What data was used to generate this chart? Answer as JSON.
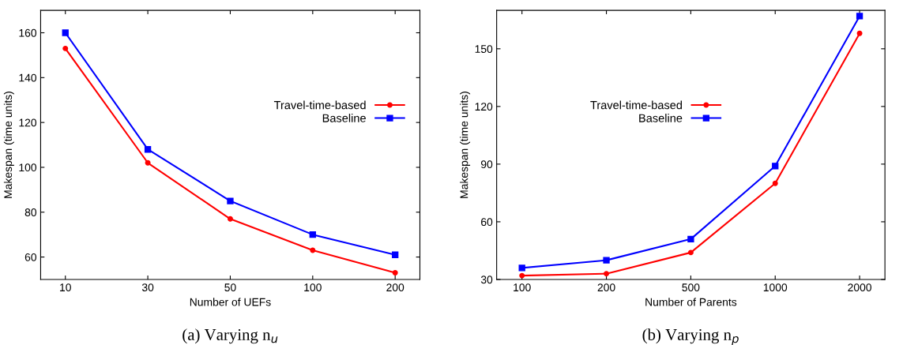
{
  "chart_data": [
    {
      "type": "line",
      "title": "(a) Varying n$_{u}$",
      "xlabel": "Number of UEFs",
      "ylabel": "Makespan (time units)",
      "categories": [
        "10",
        "30",
        "50",
        "100",
        "200"
      ],
      "ylim": [
        50,
        170
      ],
      "yticks": [
        60,
        80,
        100,
        120,
        140,
        160
      ],
      "grid": false,
      "legend": "right",
      "series": [
        {
          "name": "Travel-time-based",
          "color": "#ff0000",
          "marker": "circle",
          "values": [
            153,
            102,
            77,
            63,
            53
          ]
        },
        {
          "name": "Baseline",
          "color": "#0000ff",
          "marker": "square",
          "values": [
            160,
            108,
            85,
            70,
            61
          ]
        }
      ]
    },
    {
      "type": "line",
      "title": "(b) Varying n$_{p}$",
      "xlabel": "Number of Parents",
      "ylabel": "Makespan (time units)",
      "categories": [
        "100",
        "200",
        "500",
        "1000",
        "2000"
      ],
      "ylim": [
        30,
        170
      ],
      "yticks": [
        30,
        60,
        90,
        120,
        150
      ],
      "grid": false,
      "legend": "left",
      "series": [
        {
          "name": "Travel-time-based",
          "color": "#ff0000",
          "marker": "circle",
          "values": [
            32,
            33,
            44,
            80,
            158
          ]
        },
        {
          "name": "Baseline",
          "color": "#0000ff",
          "marker": "square",
          "values": [
            36,
            40,
            51,
            89,
            167
          ]
        }
      ]
    }
  ]
}
